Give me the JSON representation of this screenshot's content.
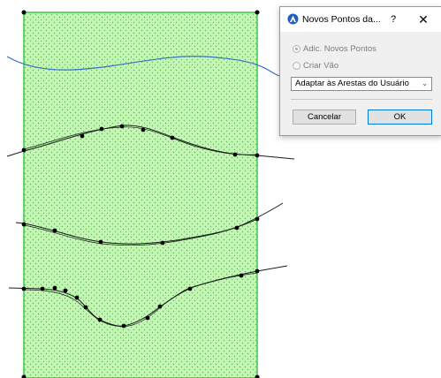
{
  "dialog": {
    "title": "Novos Pontos da...",
    "help_glyph": "?",
    "close_glyph": "✕",
    "icon": "archicad-app-icon",
    "radio_add_points": "Adic. Novos Pontos",
    "radio_create_hole": "Criar Vão",
    "dropdown_value": "Adaptar às Arestas do Usuário",
    "cancel_label": "Cancelar",
    "ok_label": "OK"
  },
  "colors": {
    "fill": "#c3f7b3",
    "border": "#3cc84a",
    "hatch": "#5fb85f",
    "blue_curve": "#3a6fc4",
    "curve": "#1a1a1a",
    "accent": "#0078d7"
  }
}
